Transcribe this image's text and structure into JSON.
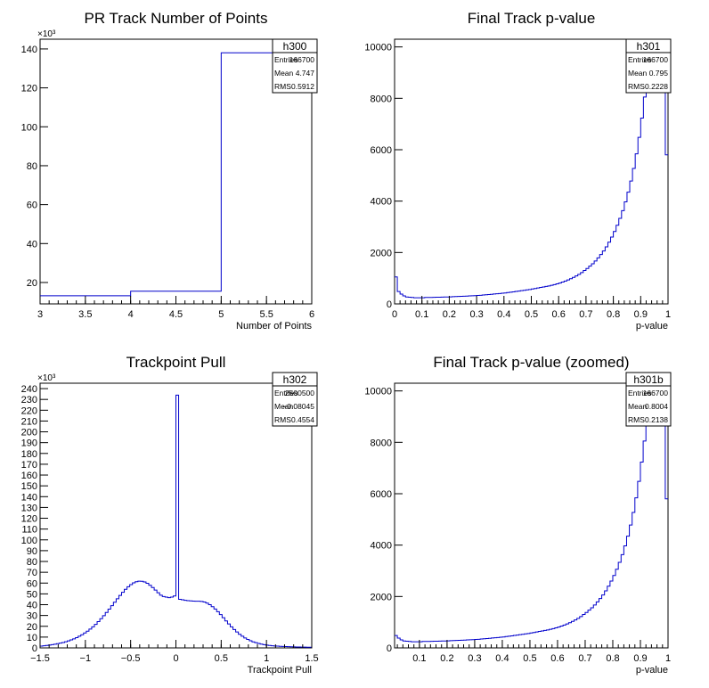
{
  "chart_data": [
    {
      "type": "histogram",
      "title": "PR Track Number of Points",
      "xlabel": "Number of Points",
      "ylabel": "",
      "y_multiplier_label": "×10³",
      "xlim": [
        3,
        6
      ],
      "ylim": [
        9,
        145
      ],
      "x_ticks": [
        "3",
        "3.5",
        "4",
        "4.5",
        "5",
        "5.5",
        "6"
      ],
      "x_tick_values": [
        3,
        3.5,
        4,
        4.5,
        5,
        5.5,
        6
      ],
      "y_ticks": [
        "20",
        "40",
        "60",
        "80",
        "100",
        "120",
        "140"
      ],
      "y_tick_values": [
        20,
        40,
        60,
        80,
        100,
        120,
        140
      ],
      "bin_edges": [
        3,
        4,
        5,
        6
      ],
      "values": [
        13.2,
        15.5,
        138
      ],
      "stats": {
        "name": "h300",
        "rows": [
          {
            "label": "Entries",
            "value": "166700"
          },
          {
            "label": "Mean",
            "value": "4.747"
          },
          {
            "label": "RMS",
            "value": "0.5912"
          }
        ]
      }
    },
    {
      "type": "histogram",
      "title": "Final Track p-value",
      "xlabel": "p-value",
      "ylabel": "",
      "xlim": [
        0,
        1
      ],
      "ylim": [
        0,
        10300
      ],
      "x_ticks": [
        "0",
        "0.1",
        "0.2",
        "0.3",
        "0.4",
        "0.5",
        "0.6",
        "0.7",
        "0.8",
        "0.9",
        "1"
      ],
      "x_tick_values": [
        0,
        0.1,
        0.2,
        0.3,
        0.4,
        0.5,
        0.6,
        0.7,
        0.8,
        0.9,
        1
      ],
      "y_ticks": [
        "0",
        "2000",
        "4000",
        "6000",
        "8000",
        "10000"
      ],
      "y_tick_values": [
        0,
        2000,
        4000,
        6000,
        8000,
        10000
      ],
      "bin_edges": [
        0,
        0.01,
        0.02,
        0.03,
        0.04,
        0.05,
        0.06,
        0.07,
        0.08,
        0.09,
        0.1,
        0.11,
        0.12,
        0.13,
        0.14,
        0.15,
        0.16,
        0.17,
        0.18,
        0.19,
        0.2,
        0.21,
        0.22,
        0.23,
        0.24,
        0.25,
        0.26,
        0.27,
        0.28,
        0.29,
        0.3,
        0.31,
        0.32,
        0.33,
        0.34,
        0.35,
        0.36,
        0.37,
        0.38,
        0.39,
        0.4,
        0.41,
        0.42,
        0.43,
        0.44,
        0.45,
        0.46,
        0.47,
        0.48,
        0.49,
        0.5,
        0.51,
        0.52,
        0.53,
        0.54,
        0.55,
        0.56,
        0.57,
        0.58,
        0.59,
        0.6,
        0.61,
        0.62,
        0.63,
        0.64,
        0.65,
        0.66,
        0.67,
        0.68,
        0.69,
        0.7,
        0.71,
        0.72,
        0.73,
        0.74,
        0.75,
        0.76,
        0.77,
        0.78,
        0.79,
        0.8,
        0.81,
        0.82,
        0.83,
        0.84,
        0.85,
        0.86,
        0.87,
        0.88,
        0.89,
        0.9,
        0.91,
        0.92,
        0.93,
        0.94,
        0.95,
        0.96,
        0.97,
        0.98,
        0.99,
        1
      ],
      "values": [
        1050,
        480,
        380,
        310,
        270,
        260,
        250,
        240,
        240,
        240,
        240,
        250,
        250,
        250,
        255,
        260,
        260,
        265,
        270,
        270,
        275,
        280,
        285,
        290,
        295,
        300,
        305,
        310,
        315,
        320,
        330,
        335,
        345,
        355,
        365,
        375,
        385,
        395,
        405,
        415,
        425,
        440,
        455,
        470,
        485,
        500,
        515,
        530,
        545,
        560,
        580,
        600,
        620,
        640,
        660,
        680,
        700,
        725,
        750,
        780,
        810,
        850,
        890,
        930,
        980,
        1030,
        1090,
        1150,
        1220,
        1300,
        1380,
        1470,
        1560,
        1670,
        1790,
        1920,
        2060,
        2220,
        2400,
        2600,
        2820,
        3060,
        3330,
        3630,
        3970,
        4350,
        4780,
        5270,
        5840,
        6480,
        7230,
        8050,
        9000,
        9700,
        10000,
        9700,
        9400,
        9600,
        9800,
        5800
      ]
    },
    {
      "type": "histogram",
      "title": "Trackpoint Pull",
      "xlabel": "Trackpoint Pull",
      "ylabel": "",
      "y_multiplier_label": "×10³",
      "xlim": [
        -1.5,
        1.5
      ],
      "ylim": [
        0,
        245
      ],
      "x_ticks": [
        "−1.5",
        "−1",
        "−0.5",
        "0",
        "0.5",
        "1",
        "1.5"
      ],
      "x_tick_values": [
        -1.5,
        -1,
        -0.5,
        0,
        0.5,
        1,
        1.5
      ],
      "y_ticks": [
        "0",
        "10",
        "20",
        "30",
        "40",
        "50",
        "60",
        "70",
        "80",
        "90",
        "100",
        "110",
        "120",
        "130",
        "140",
        "150",
        "160",
        "170",
        "180",
        "190",
        "200",
        "210",
        "220",
        "230",
        "240"
      ],
      "y_tick_values": [
        0,
        10,
        20,
        30,
        40,
        50,
        60,
        70,
        80,
        90,
        100,
        110,
        120,
        130,
        140,
        150,
        160,
        170,
        180,
        190,
        200,
        210,
        220,
        230,
        240
      ],
      "bin_edges": [
        -1.5,
        -1.47,
        -1.44,
        -1.41,
        -1.38,
        -1.35,
        -1.32,
        -1.29,
        -1.26,
        -1.23,
        -1.2,
        -1.17,
        -1.14,
        -1.11,
        -1.08,
        -1.05,
        -1.02,
        -0.99,
        -0.96,
        -0.93,
        -0.9,
        -0.87,
        -0.84,
        -0.81,
        -0.78,
        -0.75,
        -0.72,
        -0.69,
        -0.66,
        -0.63,
        -0.6,
        -0.57,
        -0.54,
        -0.51,
        -0.48,
        -0.45,
        -0.42,
        -0.39,
        -0.36,
        -0.33,
        -0.3,
        -0.27,
        -0.24,
        -0.21,
        -0.18,
        -0.15,
        -0.12,
        -0.09,
        -0.06,
        -0.03,
        0,
        0.03,
        0.06,
        0.09,
        0.12,
        0.15,
        0.18,
        0.21,
        0.24,
        0.27,
        0.3,
        0.33,
        0.36,
        0.39,
        0.42,
        0.45,
        0.48,
        0.51,
        0.54,
        0.57,
        0.6,
        0.63,
        0.66,
        0.69,
        0.72,
        0.75,
        0.78,
        0.81,
        0.84,
        0.87,
        0.9,
        0.93,
        0.96,
        0.99,
        1.02,
        1.05,
        1.08,
        1.11,
        1.14,
        1.17,
        1.2,
        1.23,
        1.26,
        1.29,
        1.32,
        1.35,
        1.38,
        1.41,
        1.44,
        1.47,
        1.5
      ],
      "values": [
        1.7,
        2,
        2.3,
        2.6,
        3,
        3.4,
        3.9,
        4.4,
        5,
        5.7,
        6.5,
        7.4,
        8.4,
        9.5,
        10.8,
        12.2,
        13.8,
        15.5,
        17.4,
        19.5,
        21.8,
        24.3,
        27,
        29.8,
        32.8,
        35.9,
        39.1,
        42.3,
        45.5,
        48.6,
        51.5,
        54.2,
        56.6,
        58.6,
        60.2,
        61.3,
        61.8,
        61.7,
        61,
        59.8,
        58,
        55.9,
        53.5,
        51,
        48.8,
        47.5,
        47,
        46.5,
        47,
        48,
        234,
        45,
        44.5,
        44,
        43.7,
        43.5,
        43.3,
        43.2,
        43.2,
        43,
        42.5,
        41.5,
        40,
        38.2,
        36,
        33.5,
        30.8,
        27.9,
        25,
        22.2,
        19.5,
        17,
        14.7,
        12.6,
        10.8,
        9.2,
        7.8,
        6.6,
        5.6,
        4.8,
        4.1,
        3.5,
        3,
        2.6,
        2.3,
        2,
        1.8,
        1.6,
        1.4,
        1.3,
        1.2,
        1.1,
        1,
        0.9,
        0.8,
        0.8,
        0.7,
        0.7,
        0.6,
        0.6
      ]
    },
    {
      "type": "histogram",
      "title": "Final Track p-value (zoomed)",
      "xlabel": "p-value",
      "ylabel": "",
      "xlim": [
        0.01,
        1
      ],
      "ylim": [
        0,
        10300
      ],
      "x_ticks": [
        "0.1",
        "0.2",
        "0.3",
        "0.4",
        "0.5",
        "0.6",
        "0.7",
        "0.8",
        "0.9",
        "1"
      ],
      "x_tick_values": [
        0.1,
        0.2,
        0.3,
        0.4,
        0.5,
        0.6,
        0.7,
        0.8,
        0.9,
        1
      ],
      "y_ticks": [
        "0",
        "2000",
        "4000",
        "6000",
        "8000",
        "10000"
      ],
      "y_tick_values": [
        0,
        2000,
        4000,
        6000,
        8000,
        10000
      ],
      "bin_edges": [
        0.01,
        0.02,
        0.03,
        0.04,
        0.05,
        0.06,
        0.07,
        0.08,
        0.09,
        0.1,
        0.11,
        0.12,
        0.13,
        0.14,
        0.15,
        0.16,
        0.17,
        0.18,
        0.19,
        0.2,
        0.21,
        0.22,
        0.23,
        0.24,
        0.25,
        0.26,
        0.27,
        0.28,
        0.29,
        0.3,
        0.31,
        0.32,
        0.33,
        0.34,
        0.35,
        0.36,
        0.37,
        0.38,
        0.39,
        0.4,
        0.41,
        0.42,
        0.43,
        0.44,
        0.45,
        0.46,
        0.47,
        0.48,
        0.49,
        0.5,
        0.51,
        0.52,
        0.53,
        0.54,
        0.55,
        0.56,
        0.57,
        0.58,
        0.59,
        0.6,
        0.61,
        0.62,
        0.63,
        0.64,
        0.65,
        0.66,
        0.67,
        0.68,
        0.69,
        0.7,
        0.71,
        0.72,
        0.73,
        0.74,
        0.75,
        0.76,
        0.77,
        0.78,
        0.79,
        0.8,
        0.81,
        0.82,
        0.83,
        0.84,
        0.85,
        0.86,
        0.87,
        0.88,
        0.89,
        0.9,
        0.91,
        0.92,
        0.93,
        0.94,
        0.95,
        0.96,
        0.97,
        0.98,
        0.99,
        1
      ],
      "values": [
        480,
        380,
        310,
        270,
        260,
        250,
        240,
        240,
        240,
        240,
        250,
        250,
        250,
        255,
        260,
        260,
        265,
        270,
        270,
        275,
        280,
        285,
        290,
        295,
        300,
        305,
        310,
        315,
        320,
        330,
        335,
        345,
        355,
        365,
        375,
        385,
        395,
        405,
        415,
        425,
        440,
        455,
        470,
        485,
        500,
        515,
        530,
        545,
        560,
        580,
        600,
        620,
        640,
        660,
        680,
        700,
        725,
        750,
        780,
        810,
        850,
        890,
        930,
        980,
        1030,
        1090,
        1150,
        1220,
        1300,
        1380,
        1470,
        1560,
        1670,
        1790,
        1920,
        2060,
        2220,
        2400,
        2600,
        2820,
        3060,
        3330,
        3630,
        3970,
        4350,
        4780,
        5270,
        5840,
        6480,
        7230,
        8050,
        9000,
        9700,
        10000,
        9700,
        9400,
        9600,
        9800,
        5800
      ],
      "stats": {
        "name": "h301b",
        "rows": [
          {
            "label": "Entries",
            "value": "166700"
          },
          {
            "label": "Mean",
            "value": "0.8004"
          },
          {
            "label": "RMS",
            "value": "0.2138"
          }
        ]
      }
    }
  ],
  "extra_stats": [
    {
      "name": "h301",
      "rows": [
        {
          "label": "Entries",
          "value": "166700"
        },
        {
          "label": "Mean",
          "value": "0.795"
        },
        {
          "label": "RMS",
          "value": "0.2228"
        }
      ]
    },
    {
      "name": "h302",
      "rows": [
        {
          "label": "Entries",
          "value": "2500500"
        },
        {
          "label": "Mean",
          "value": "−0.08045"
        },
        {
          "label": "RMS",
          "value": "0.4554"
        }
      ]
    }
  ],
  "colors": {
    "line": "#0000cc",
    "axis": "#000000",
    "background": "#ffffff"
  }
}
